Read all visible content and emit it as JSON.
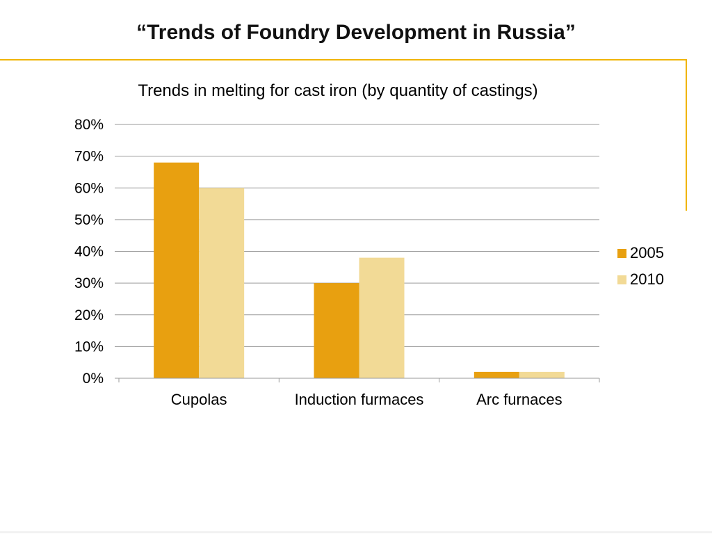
{
  "slide": {
    "title": "“Trends of Foundry Development in Russia”"
  },
  "colors": {
    "accent": "#f0b400",
    "series_2005": "#e8a010",
    "series_2010": "#f2da96",
    "gridline": "#9a9a9a"
  },
  "chart_data": {
    "type": "bar",
    "title": "Trends in melting for cast iron (by quantity of castings)",
    "categories": [
      "Cupolas",
      "Induction furmaces",
      "Arc furnaces"
    ],
    "series": [
      {
        "name": "2005",
        "values": [
          68,
          30,
          2
        ]
      },
      {
        "name": "2010",
        "values": [
          60,
          38,
          2
        ]
      }
    ],
    "ylim": [
      0,
      80
    ],
    "yticks": [
      0,
      10,
      20,
      30,
      40,
      50,
      60,
      70,
      80
    ],
    "ytick_labels": [
      "0%",
      "10%",
      "20%",
      "30%",
      "40%",
      "50%",
      "60%",
      "70%",
      "80%"
    ],
    "y_unit": "percent",
    "grid": true,
    "legend_position": "right"
  }
}
